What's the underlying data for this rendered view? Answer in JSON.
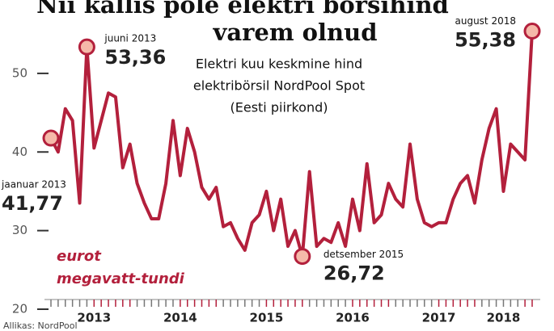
{
  "chart_data": {
    "type": "line",
    "title": [
      "Nii kallis pole elektri börsihind",
      "varem olnud"
    ],
    "subtitle": [
      "Elektri kuu keskmine hind",
      "elektribörsil NordPool Spot",
      "(Eesti piirkond)"
    ],
    "y_label": [
      "eurot",
      "megavatt-tundi"
    ],
    "source": "Allikas: NordPool",
    "categories": [
      null,
      null,
      null,
      null,
      null,
      null,
      "2013",
      null,
      null,
      null,
      null,
      null,
      null,
      null,
      null,
      null,
      null,
      null,
      "2014",
      null,
      null,
      null,
      null,
      null,
      null,
      null,
      null,
      null,
      null,
      null,
      "2015",
      null,
      null,
      null,
      null,
      null,
      null,
      null,
      null,
      null,
      null,
      null,
      "2016",
      null,
      null,
      null,
      null,
      null,
      null,
      null,
      null,
      null,
      null,
      null,
      "2017",
      null,
      null,
      null,
      null,
      null,
      null,
      null,
      null,
      "2018",
      null,
      null,
      null,
      null
    ],
    "series": [
      {
        "color": "#b3203c",
        "values": [
          41.77,
          40,
          45.5,
          44,
          33.5,
          53.36,
          40.5,
          44,
          47.5,
          47,
          38,
          41,
          36,
          33.5,
          31.5,
          31.5,
          36,
          44,
          37,
          43,
          40,
          35.5,
          34,
          35.5,
          30.5,
          31,
          29,
          27.5,
          31,
          32,
          35,
          30,
          34,
          28,
          30,
          26.72,
          37.5,
          28,
          29,
          28.5,
          31,
          28,
          34,
          30,
          38.5,
          31,
          32,
          36,
          34,
          33,
          41,
          34,
          31,
          30.5,
          31,
          31,
          34,
          36,
          37,
          33.5,
          39,
          43,
          45.5,
          35,
          41,
          40,
          39,
          55.38
        ]
      }
    ],
    "value_labels": [
      "41,77",
      null,
      null,
      null,
      null,
      "53,36",
      null,
      null,
      null,
      null,
      null,
      null,
      null,
      null,
      null,
      null,
      null,
      null,
      null,
      null,
      null,
      null,
      null,
      null,
      null,
      null,
      null,
      null,
      null,
      null,
      null,
      null,
      null,
      null,
      null,
      "26,72",
      null,
      null,
      null,
      null,
      null,
      null,
      null,
      null,
      null,
      null,
      null,
      null,
      null,
      null,
      null,
      null,
      null,
      null,
      null,
      null,
      null,
      null,
      null,
      null,
      null,
      null,
      null,
      null,
      null,
      null,
      null,
      "55,38"
    ],
    "date_labels": [
      "jaanuar 2013",
      null,
      null,
      null,
      null,
      "juuni 2013",
      null,
      null,
      null,
      null,
      null,
      null,
      null,
      null,
      null,
      null,
      null,
      null,
      null,
      null,
      null,
      null,
      null,
      null,
      null,
      null,
      null,
      null,
      null,
      null,
      null,
      null,
      null,
      null,
      null,
      "detsember 2015",
      null,
      null,
      null,
      null,
      null,
      null,
      null,
      null,
      null,
      null,
      null,
      null,
      null,
      null,
      null,
      null,
      null,
      null,
      null,
      null,
      null,
      null,
      null,
      null,
      null,
      null,
      null,
      null,
      null,
      null,
      null,
      "august 2018"
    ],
    "ylim": [
      20,
      58
    ],
    "yticks": [
      20,
      30,
      40,
      50
    ],
    "grid": false
  }
}
